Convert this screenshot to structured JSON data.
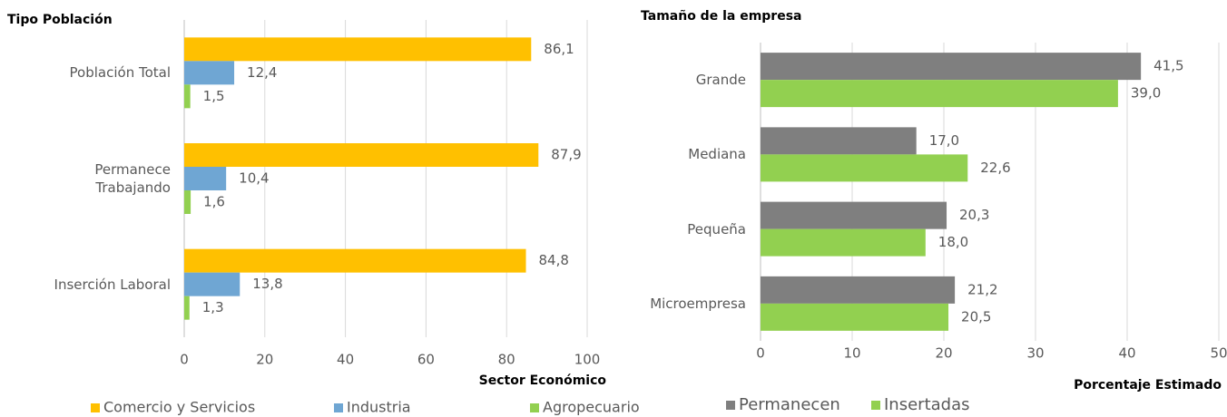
{
  "chart_data": [
    {
      "type": "bar",
      "orientation": "horizontal",
      "title": "Tipo Población",
      "xlabel": "Sector Económico",
      "categories": [
        "Población Total",
        "Permanece\nTrabajando",
        "Inserción Laboral"
      ],
      "series": [
        {
          "name": "Comercio y Servicios",
          "color": "#ffc000",
          "values": [
            86.1,
            87.9,
            84.8
          ],
          "value_labels": [
            "86,1",
            "87,9",
            "84,8"
          ]
        },
        {
          "name": "Industria",
          "color": "#6fa6d3",
          "values": [
            12.4,
            10.4,
            13.8
          ],
          "value_labels": [
            "12,4",
            "10,4",
            "13,8"
          ]
        },
        {
          "name": "Agropecuario",
          "color": "#92d050",
          "values": [
            1.5,
            1.6,
            1.3
          ],
          "value_labels": [
            "1,5",
            "1,6",
            "1,3"
          ]
        }
      ],
      "xlim": [
        0,
        100
      ],
      "xticks": [
        0,
        20,
        40,
        60,
        80,
        100
      ],
      "grid": true
    },
    {
      "type": "bar",
      "orientation": "horizontal",
      "title": "Tamaño de la empresa",
      "xlabel": "Porcentaje Estimado",
      "categories": [
        "Grande",
        "Mediana",
        "Pequeña",
        "Microempresa"
      ],
      "series": [
        {
          "name": "Permanecen",
          "color": "#7f7f7f",
          "values": [
            41.5,
            17.0,
            20.3,
            21.2
          ],
          "value_labels": [
            "41,5",
            "17,0",
            "20,3",
            "21,2"
          ]
        },
        {
          "name": "Insertadas",
          "color": "#92d050",
          "values": [
            39.0,
            22.6,
            18.0,
            20.5
          ],
          "value_labels": [
            "39,0",
            "22,6",
            "18,0",
            "20,5"
          ]
        }
      ],
      "xlim": [
        0,
        50
      ],
      "xticks": [
        0,
        10,
        20,
        30,
        40,
        50
      ],
      "grid": true
    }
  ]
}
